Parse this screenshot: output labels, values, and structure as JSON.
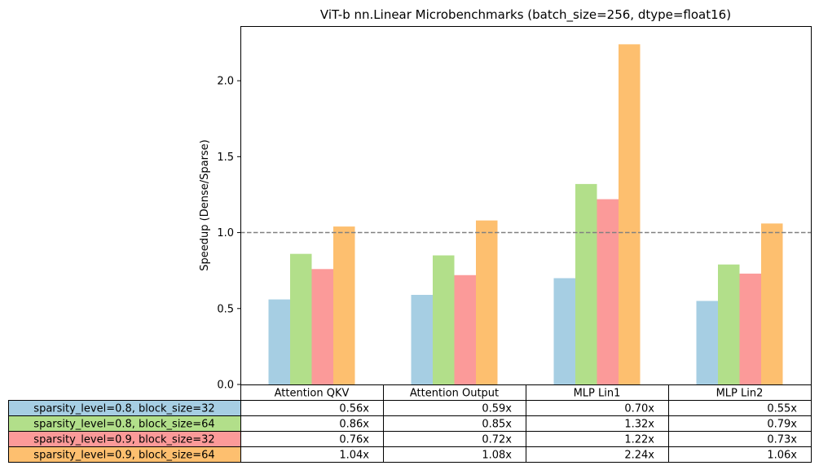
{
  "chart_data": {
    "type": "bar",
    "title": "ViT-b nn.Linear Microbenchmarks (batch_size=256, dtype=float16)",
    "xlabel": "",
    "ylabel": "Speedup (Dense/Sparse)",
    "ylim": [
      0,
      2.36
    ],
    "yticks": [
      "0.0",
      "0.5",
      "1.0",
      "1.5",
      "2.0"
    ],
    "ytick_values": [
      0,
      0.5,
      1.0,
      1.5,
      2.0
    ],
    "grid": false,
    "reference_line": {
      "y": 1.0,
      "style": "dashed",
      "color": "#808080"
    },
    "categories": [
      "Attention QKV",
      "Attention Output",
      "MLP Lin1",
      "MLP Lin2"
    ],
    "series": [
      {
        "name": "sparsity_level=0.8, block_size=32",
        "color": "#a6cee3",
        "values": [
          0.56,
          0.59,
          0.7,
          0.55
        ],
        "labels": [
          "0.56x",
          "0.59x",
          "0.70x",
          "0.55x"
        ]
      },
      {
        "name": "sparsity_level=0.8, block_size=64",
        "color": "#b2df8a",
        "values": [
          0.86,
          0.85,
          1.32,
          0.79
        ],
        "labels": [
          "0.86x",
          "0.85x",
          "1.32x",
          "0.79x"
        ]
      },
      {
        "name": "sparsity_level=0.9, block_size=32",
        "color": "#fb9a99",
        "values": [
          0.76,
          0.72,
          1.22,
          0.73
        ],
        "labels": [
          "0.76x",
          "0.72x",
          "1.22x",
          "0.73x"
        ]
      },
      {
        "name": "sparsity_level=0.9, block_size=64",
        "color": "#fdbf6f",
        "values": [
          1.04,
          1.08,
          2.24,
          1.06
        ],
        "labels": [
          "1.04x",
          "1.08x",
          "2.24x",
          "1.06x"
        ]
      }
    ],
    "legend": "table-below"
  }
}
